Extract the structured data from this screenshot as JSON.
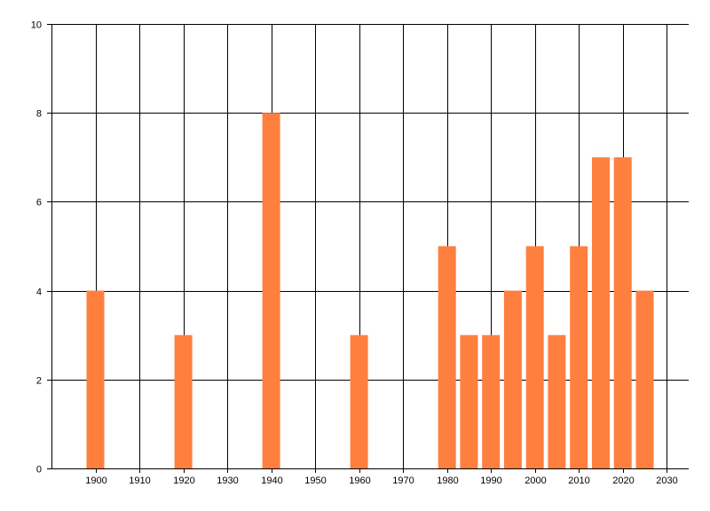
{
  "chart_data": {
    "type": "bar",
    "x": [
      1900,
      1920,
      1940,
      1960,
      1980,
      1985,
      1990,
      1995,
      2000,
      2005,
      2010,
      2015,
      2020,
      2025
    ],
    "values": [
      4,
      3,
      8,
      3,
      5,
      3,
      3,
      4,
      5,
      3,
      5,
      7,
      7,
      4
    ],
    "xlim": [
      1890,
      2035
    ],
    "ylim": [
      0,
      10
    ],
    "x_ticks": [
      "1900",
      "1910",
      "1920",
      "1930",
      "1940",
      "1950",
      "1960",
      "1970",
      "1980",
      "1990",
      "2000",
      "2010",
      "2020",
      "2030"
    ],
    "y_ticks": [
      "0",
      "2",
      "4",
      "6",
      "8",
      "10"
    ],
    "grid": true,
    "bar_color": "#ff7f3f",
    "grid_color": "#000000",
    "title": "",
    "xlabel": "",
    "ylabel": ""
  }
}
